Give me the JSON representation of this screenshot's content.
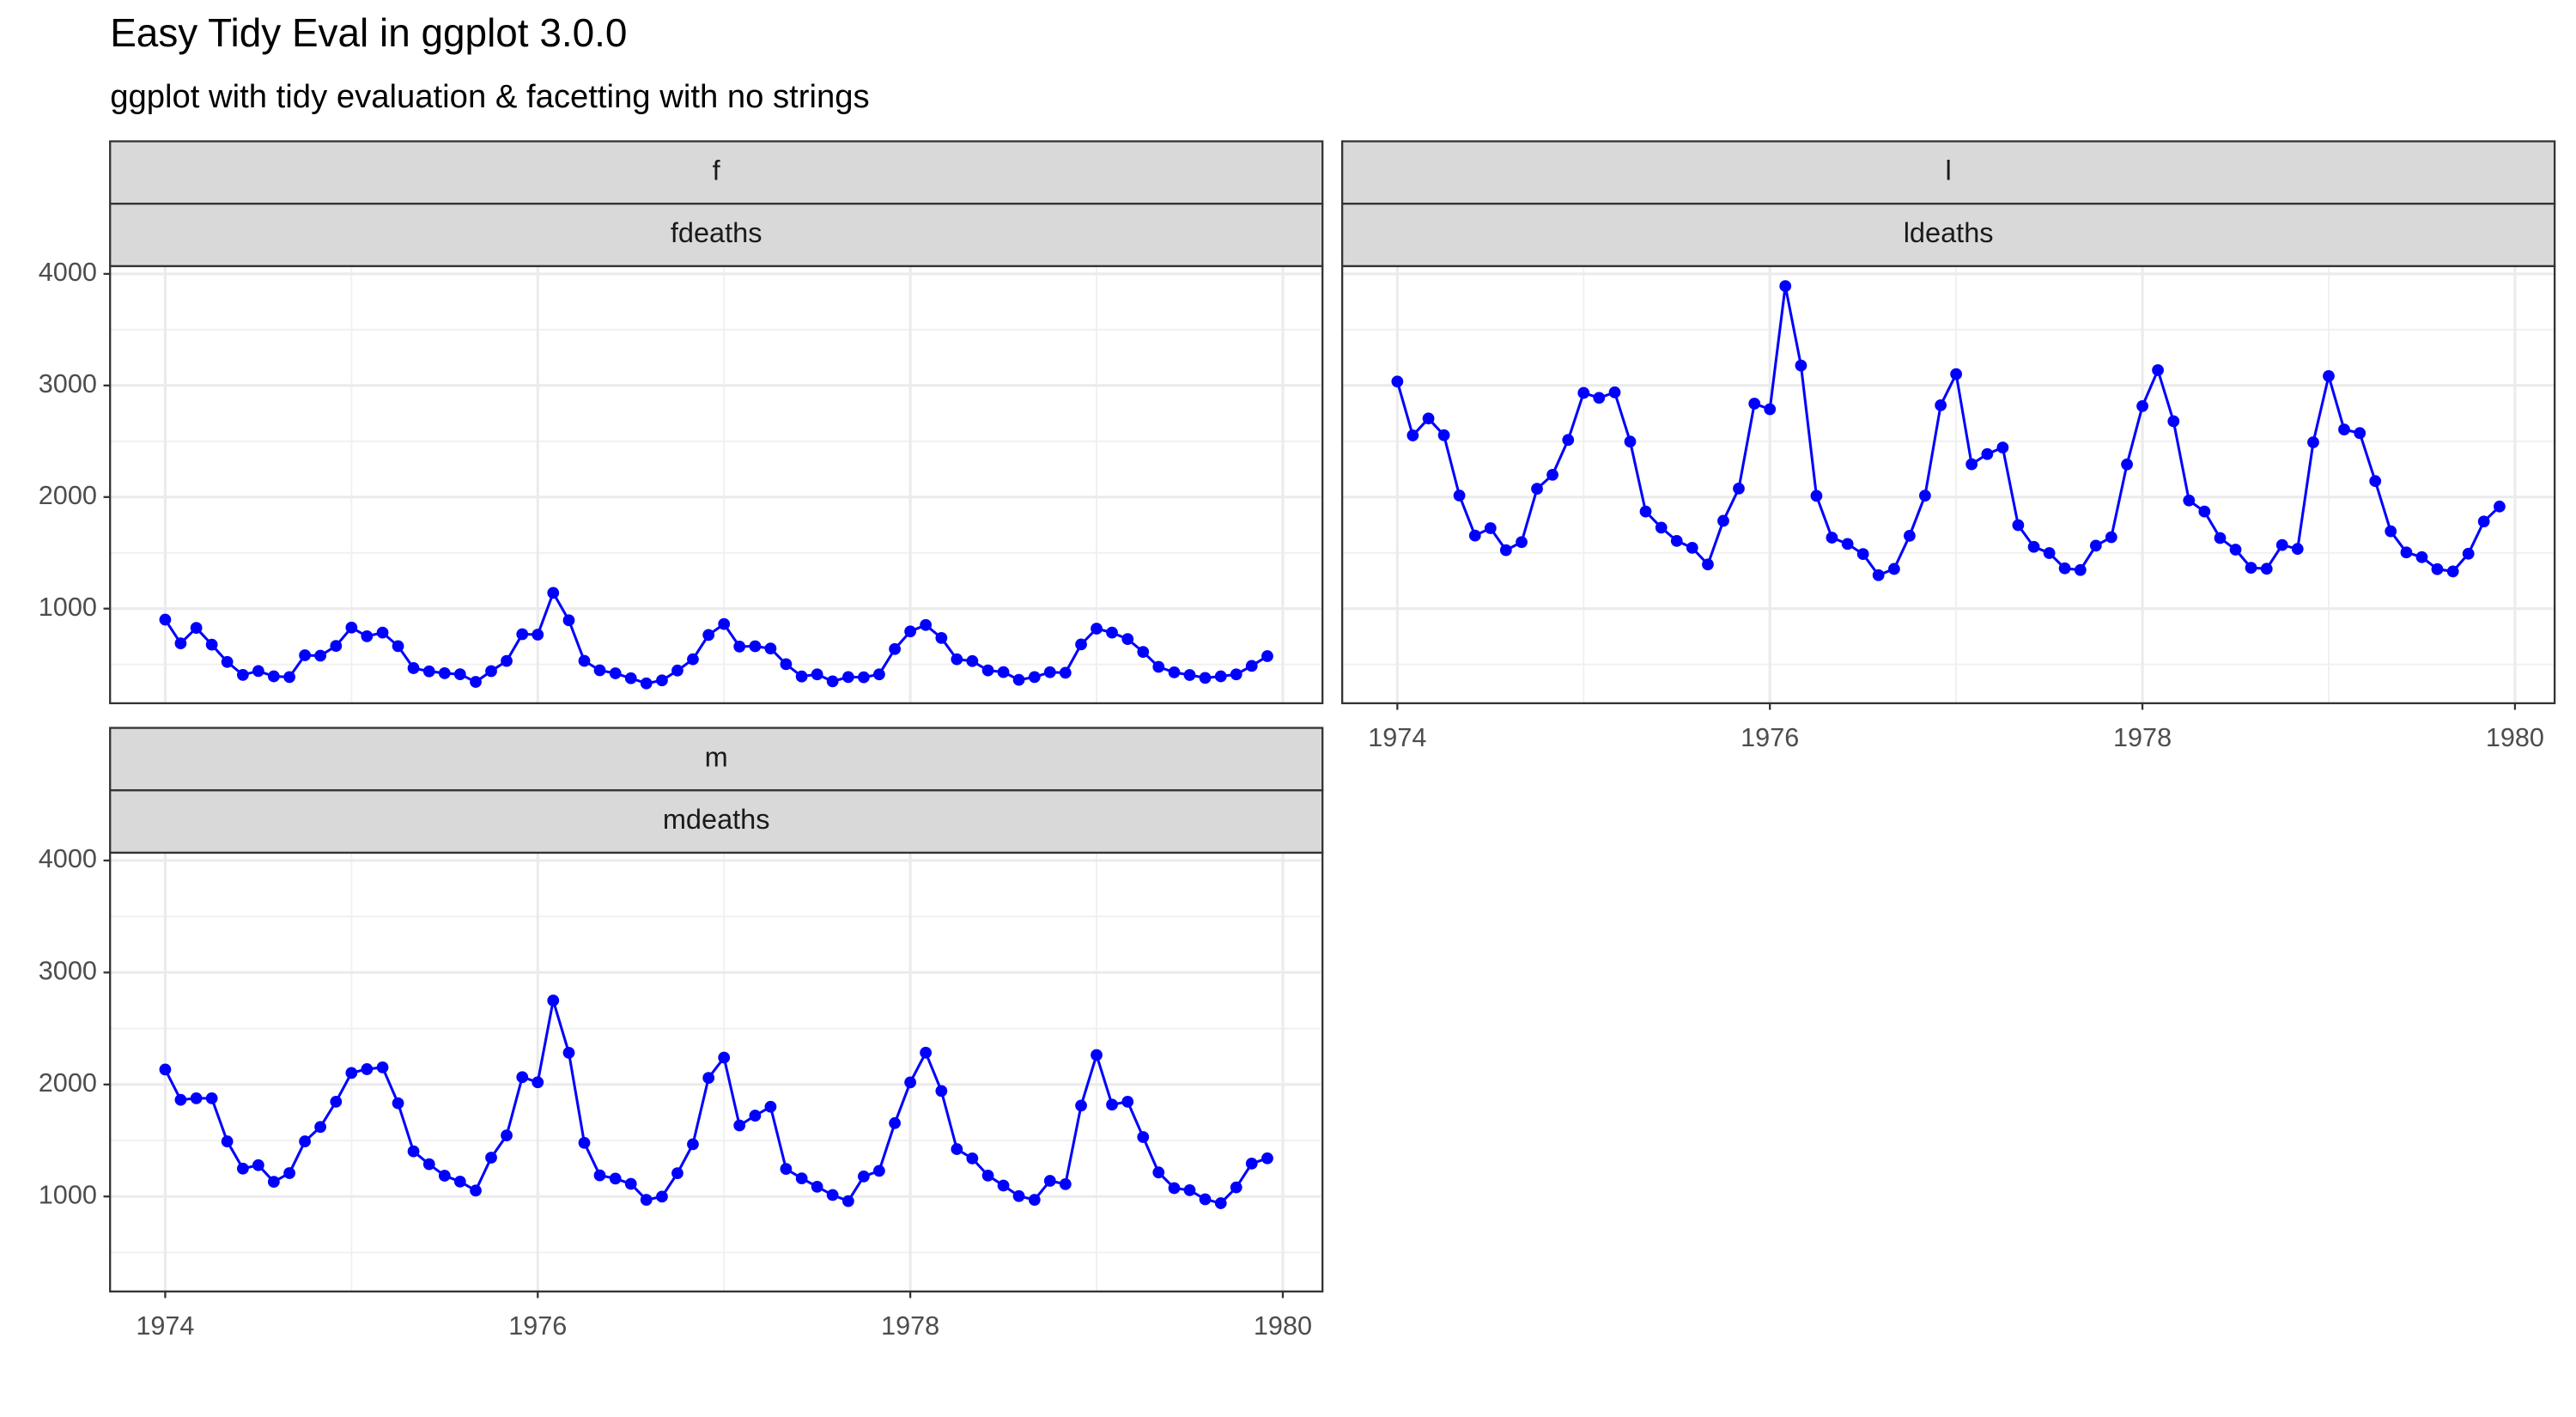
{
  "chart_data": {
    "type": "line",
    "markers": true,
    "title": "Easy Tidy Eval in ggplot 3.0.0",
    "subtitle": "ggplot with tidy evaluation & facetting with no strings",
    "x": [
      1974,
      1974.083,
      1974.167,
      1974.25,
      1974.333,
      1974.417,
      1974.5,
      1974.583,
      1974.667,
      1974.75,
      1974.833,
      1974.917,
      1975,
      1975.083,
      1975.167,
      1975.25,
      1975.333,
      1975.417,
      1975.5,
      1975.583,
      1975.667,
      1975.75,
      1975.833,
      1975.917,
      1976,
      1976.083,
      1976.167,
      1976.25,
      1976.333,
      1976.417,
      1976.5,
      1976.583,
      1976.667,
      1976.75,
      1976.833,
      1976.917,
      1977,
      1977.083,
      1977.167,
      1977.25,
      1977.333,
      1977.417,
      1977.5,
      1977.583,
      1977.667,
      1977.75,
      1977.833,
      1977.917,
      1978,
      1978.083,
      1978.167,
      1978.25,
      1978.333,
      1978.417,
      1978.5,
      1978.583,
      1978.667,
      1978.75,
      1978.833,
      1978.917,
      1979,
      1979.083,
      1979.167,
      1979.25,
      1979.333,
      1979.417,
      1979.5,
      1979.583,
      1979.667,
      1979.75,
      1979.833,
      1979.917
    ],
    "series": [
      {
        "facet": "f",
        "name": "fdeaths",
        "color": "#0000ff",
        "values": [
          901,
          689,
          827,
          677,
          522,
          406,
          441,
          393,
          387,
          582,
          578,
          666,
          830,
          752,
          785,
          664,
          467,
          438,
          421,
          412,
          343,
          440,
          531,
          771,
          767,
          1141,
          896,
          532,
          447,
          420,
          376,
          330,
          357,
          445,
          546,
          764,
          862,
          660,
          663,
          643,
          502,
          392,
          411,
          348,
          387,
          385,
          411,
          638,
          796,
          853,
          737,
          546,
          530,
          446,
          431,
          362,
          387,
          430,
          425,
          679,
          821,
          785,
          727,
          612,
          478,
          429,
          405,
          379,
          393,
          411,
          487,
          574
        ]
      },
      {
        "facet": "l",
        "name": "ldeaths",
        "color": "#0000ff",
        "values": [
          3035,
          2552,
          2704,
          2554,
          2014,
          1655,
          1721,
          1524,
          1596,
          2074,
          2199,
          2512,
          2933,
          2889,
          2938,
          2497,
          1870,
          1726,
          1607,
          1545,
          1396,
          1787,
          2076,
          2837,
          2787,
          3891,
          3179,
          2011,
          1636,
          1580,
          1489,
          1300,
          1356,
          1653,
          2013,
          2823,
          3102,
          2294,
          2385,
          2444,
          1748,
          1554,
          1498,
          1361,
          1346,
          1564,
          1640,
          2293,
          2815,
          3137,
          2679,
          1969,
          1870,
          1633,
          1529,
          1366,
          1357,
          1570,
          1535,
          2491,
          3084,
          2605,
          2573,
          2143,
          1693,
          1504,
          1461,
          1354,
          1333,
          1492,
          1781,
          1915
        ]
      },
      {
        "facet": "m",
        "name": "mdeaths",
        "color": "#0000ff",
        "values": [
          2134,
          1863,
          1877,
          1877,
          1492,
          1249,
          1280,
          1131,
          1209,
          1492,
          1621,
          1846,
          2103,
          2137,
          2153,
          1833,
          1403,
          1288,
          1186,
          1133,
          1053,
          1347,
          1545,
          2066,
          2020,
          2750,
          2283,
          1479,
          1189,
          1160,
          1113,
          970,
          999,
          1208,
          1467,
          2059,
          2240,
          1634,
          1722,
          1801,
          1246,
          1162,
          1087,
          1013,
          959,
          1179,
          1229,
          1655,
          2019,
          2284,
          1942,
          1423,
          1340,
          1187,
          1098,
          1004,
          970,
          1140,
          1110,
          1812,
          2263,
          1820,
          1846,
          1531,
          1215,
          1075,
          1056,
          975,
          940,
          1081,
          1294,
          1341
        ]
      }
    ],
    "xlim": [
      1973.704,
      1980.213
    ],
    "xticks": [
      1974,
      1976,
      1978,
      1980
    ],
    "minor_xticks": [
      1975,
      1977,
      1979
    ],
    "ylim": [
      152,
      4069
    ],
    "yticks": [
      1000,
      2000,
      3000,
      4000
    ],
    "minor_yticks": [
      500,
      1500,
      2500,
      3500
    ],
    "grid": true
  }
}
